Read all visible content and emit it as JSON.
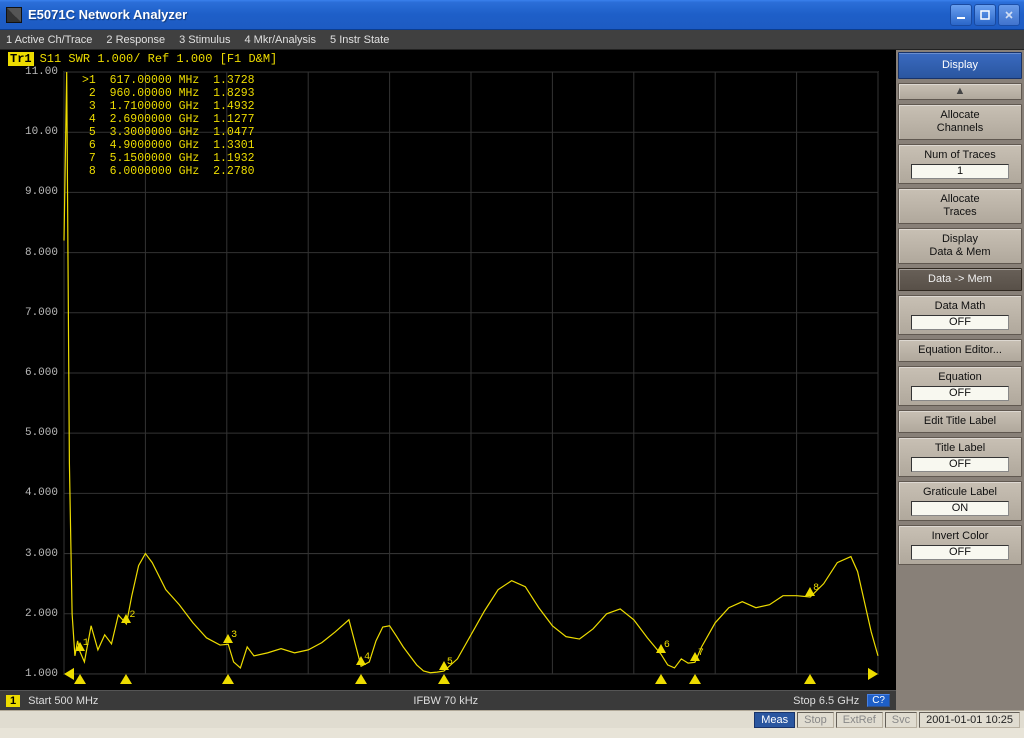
{
  "window": {
    "title": "E5071C Network Analyzer"
  },
  "menu": [
    "1 Active Ch/Trace",
    "2 Response",
    "3 Stimulus",
    "4 Mkr/Analysis",
    "5 Instr State"
  ],
  "trace_header": {
    "badge": "Tr1",
    "text": "S11 SWR 1.000/ Ref 1.000 [F1 D&M]"
  },
  "plot": {
    "xlim": [
      0.5,
      6.5
    ],
    "ylim": [
      1.0,
      11.0
    ],
    "ytick_step": 1.0,
    "grid_color": "#333333",
    "trace_color": "#eddc00",
    "background_color": "#000000",
    "ylabels": [
      "11.00",
      "10.00",
      "9.000",
      "8.000",
      "7.000",
      "6.000",
      "5.000",
      "4.000",
      "3.000",
      "2.000",
      "1.000"
    ],
    "xaxis_marker_x": [
      0.617,
      0.96,
      1.71,
      2.69,
      3.3,
      4.9,
      5.15,
      6.0
    ],
    "trace_points": [
      [
        0.5,
        8.2
      ],
      [
        0.52,
        11.0
      ],
      [
        0.54,
        4.5
      ],
      [
        0.56,
        2.0
      ],
      [
        0.58,
        1.3
      ],
      [
        0.6,
        1.55
      ],
      [
        0.617,
        1.3728
      ],
      [
        0.65,
        1.2
      ],
      [
        0.7,
        1.8
      ],
      [
        0.75,
        1.4
      ],
      [
        0.8,
        1.65
      ],
      [
        0.85,
        1.5
      ],
      [
        0.9,
        1.98
      ],
      [
        0.96,
        1.8293
      ],
      [
        1.0,
        2.3
      ],
      [
        1.05,
        2.8
      ],
      [
        1.1,
        3.0
      ],
      [
        1.15,
        2.85
      ],
      [
        1.25,
        2.4
      ],
      [
        1.35,
        2.15
      ],
      [
        1.45,
        1.85
      ],
      [
        1.55,
        1.6
      ],
      [
        1.65,
        1.48
      ],
      [
        1.71,
        1.4932
      ],
      [
        1.75,
        1.2
      ],
      [
        1.8,
        1.1
      ],
      [
        1.85,
        1.45
      ],
      [
        1.9,
        1.3
      ],
      [
        2.0,
        1.35
      ],
      [
        2.1,
        1.42
      ],
      [
        2.2,
        1.35
      ],
      [
        2.3,
        1.4
      ],
      [
        2.4,
        1.52
      ],
      [
        2.5,
        1.7
      ],
      [
        2.6,
        1.9
      ],
      [
        2.69,
        1.1277
      ],
      [
        2.75,
        1.2
      ],
      [
        2.8,
        1.55
      ],
      [
        2.85,
        1.78
      ],
      [
        2.9,
        1.8
      ],
      [
        2.95,
        1.63
      ],
      [
        3.0,
        1.45
      ],
      [
        3.05,
        1.3
      ],
      [
        3.1,
        1.15
      ],
      [
        3.15,
        1.05
      ],
      [
        3.2,
        1.02
      ],
      [
        3.25,
        1.03
      ],
      [
        3.3,
        1.0477
      ],
      [
        3.4,
        1.25
      ],
      [
        3.5,
        1.65
      ],
      [
        3.6,
        2.05
      ],
      [
        3.7,
        2.4
      ],
      [
        3.8,
        2.55
      ],
      [
        3.9,
        2.45
      ],
      [
        4.0,
        2.1
      ],
      [
        4.1,
        1.8
      ],
      [
        4.2,
        1.62
      ],
      [
        4.3,
        1.58
      ],
      [
        4.4,
        1.75
      ],
      [
        4.5,
        2.0
      ],
      [
        4.6,
        2.08
      ],
      [
        4.7,
        1.9
      ],
      [
        4.8,
        1.6
      ],
      [
        4.9,
        1.3301
      ],
      [
        4.95,
        1.15
      ],
      [
        5.0,
        1.1
      ],
      [
        5.05,
        1.25
      ],
      [
        5.1,
        1.18
      ],
      [
        5.15,
        1.1932
      ],
      [
        5.2,
        1.45
      ],
      [
        5.3,
        1.85
      ],
      [
        5.4,
        2.1
      ],
      [
        5.5,
        2.2
      ],
      [
        5.6,
        2.1
      ],
      [
        5.7,
        2.15
      ],
      [
        5.8,
        2.3
      ],
      [
        5.9,
        2.3
      ],
      [
        6.0,
        2.278
      ],
      [
        6.1,
        2.5
      ],
      [
        6.2,
        2.85
      ],
      [
        6.3,
        2.95
      ],
      [
        6.35,
        2.7
      ],
      [
        6.4,
        2.2
      ],
      [
        6.45,
        1.7
      ],
      [
        6.5,
        1.3
      ]
    ]
  },
  "markers": [
    {
      "n": 1,
      "freq": "617.00000 MHz",
      "val": "1.3728",
      "active": true,
      "x": 0.617,
      "y": 1.3728
    },
    {
      "n": 2,
      "freq": "960.00000 MHz",
      "val": "1.8293",
      "active": false,
      "x": 0.96,
      "y": 1.8293
    },
    {
      "n": 3,
      "freq": "1.7100000 GHz",
      "val": "1.4932",
      "active": false,
      "x": 1.71,
      "y": 1.4932
    },
    {
      "n": 4,
      "freq": "2.6900000 GHz",
      "val": "1.1277",
      "active": false,
      "x": 2.69,
      "y": 1.1277
    },
    {
      "n": 5,
      "freq": "3.3000000 GHz",
      "val": "1.0477",
      "active": false,
      "x": 3.3,
      "y": 1.0477
    },
    {
      "n": 6,
      "freq": "4.9000000 GHz",
      "val": "1.3301",
      "active": false,
      "x": 4.9,
      "y": 1.3301
    },
    {
      "n": 7,
      "freq": "5.1500000 GHz",
      "val": "1.1932",
      "active": false,
      "x": 5.15,
      "y": 1.1932
    },
    {
      "n": 8,
      "freq": "6.0000000 GHz",
      "val": "2.2780",
      "active": false,
      "x": 6.0,
      "y": 2.278
    }
  ],
  "status": {
    "channel": "1",
    "start": "Start 500 MHz",
    "ifbw": "IFBW 70 kHz",
    "stop": "Stop 6.5 GHz",
    "c_btn": "C?"
  },
  "sidebar": {
    "header": "Display",
    "buttons": [
      {
        "kind": "arrow",
        "label": "▲"
      },
      {
        "kind": "two",
        "label": "Allocate",
        "sub": "Channels"
      },
      {
        "kind": "val",
        "label": "Num of Traces",
        "value": "1"
      },
      {
        "kind": "two",
        "label": "Allocate",
        "sub": "Traces"
      },
      {
        "kind": "two",
        "label": "Display",
        "sub": "Data & Mem"
      },
      {
        "kind": "dark",
        "label": "Data -> Mem"
      },
      {
        "kind": "val",
        "label": "Data Math",
        "value": "OFF"
      },
      {
        "kind": "one",
        "label": "Equation Editor..."
      },
      {
        "kind": "val",
        "label": "Equation",
        "value": "OFF"
      },
      {
        "kind": "one",
        "label": "Edit Title Label"
      },
      {
        "kind": "val",
        "label": "Title Label",
        "value": "OFF"
      },
      {
        "kind": "val",
        "label": "Graticule Label",
        "value": "ON"
      },
      {
        "kind": "val",
        "label": "Invert Color",
        "value": "OFF"
      }
    ]
  },
  "bottombar": {
    "items": [
      "Meas",
      "Stop",
      "ExtRef",
      "Svc"
    ],
    "active_index": 0,
    "datetime": "2001-01-01 10:25"
  }
}
